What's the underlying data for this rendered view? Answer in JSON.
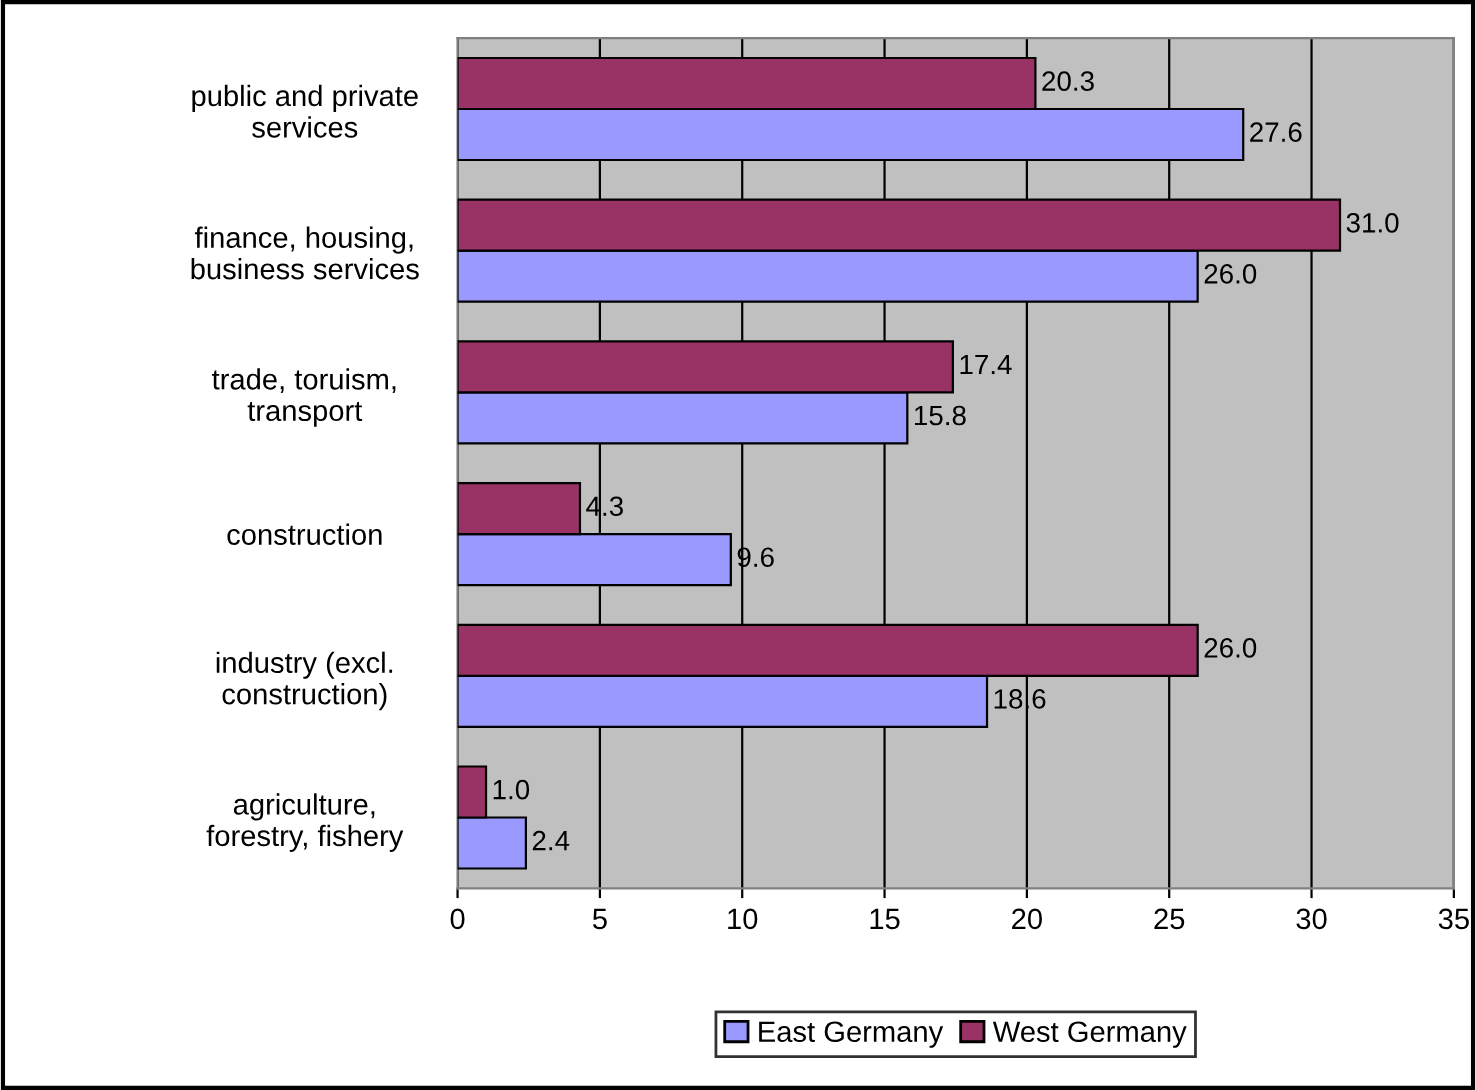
{
  "chart_data": {
    "type": "bar",
    "orientation": "horizontal",
    "categories": [
      "public and private\nservices",
      "finance, housing,\nbusiness services",
      "trade, toruism,\ntransport",
      "construction",
      "industry (excl.\nconstruction)",
      "agriculture,\nforestry, fishery"
    ],
    "series": [
      {
        "name": "East Germany",
        "color": "#9999ff",
        "values": [
          27.6,
          26,
          15.8,
          9.6,
          18.6,
          2.4
        ],
        "value_labels": [
          "27.6",
          "26.0",
          "15.8",
          "9.6",
          "18.6",
          "2.4"
        ]
      },
      {
        "name": "West Germany",
        "color": "#993366",
        "values": [
          20.3,
          31,
          17.4,
          4.3,
          26,
          1
        ],
        "value_labels": [
          "20.3",
          "31.0",
          "17.4",
          "4.3",
          "26.0",
          "1.0"
        ]
      }
    ],
    "xlim": [
      0,
      35
    ],
    "xticks": [
      0,
      5,
      10,
      15,
      20,
      25,
      30,
      35
    ],
    "grid": "x",
    "legend": "bottom"
  }
}
